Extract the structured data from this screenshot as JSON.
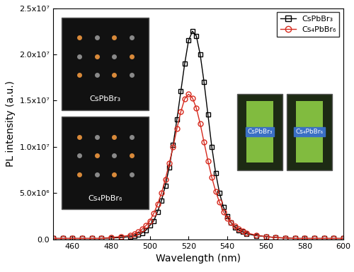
{
  "chart_data": {
    "type": "line",
    "x_label": "Wavelength (nm)",
    "y_label": "PL intensity (a.u.)",
    "x": [
      450,
      455,
      460,
      465,
      470,
      475,
      480,
      485,
      490,
      492,
      494,
      496,
      498,
      500,
      502,
      504,
      506,
      508,
      510,
      512,
      514,
      516,
      518,
      520,
      522,
      524,
      526,
      528,
      530,
      532,
      534,
      536,
      538,
      540,
      542,
      544,
      546,
      548,
      550,
      555,
      560,
      565,
      570,
      575,
      580,
      585,
      590,
      595,
      600
    ],
    "series": [
      {
        "name": "CsPbBr₃",
        "color": "#000000",
        "marker": "square",
        "values": [
          100000.0,
          100000.0,
          100000.0,
          100000.0,
          100000.0,
          100000.0,
          150000.0,
          200000.0,
          300000.0,
          400000.0,
          500000.0,
          700000.0,
          1000000.0,
          1500000.0,
          2000000.0,
          3000000.0,
          4200000.0,
          5800000.0,
          7800000.0,
          10200000.0,
          13000000.0,
          16000000.0,
          19000000.0,
          21500000.0,
          22500000.0,
          22000000.0,
          20000000.0,
          17000000.0,
          13500000.0,
          10000000.0,
          7200000.0,
          5000000.0,
          3500000.0,
          2500000.0,
          1800000.0,
          1300000.0,
          1000000.0,
          800000.0,
          600000.0,
          400000.0,
          300000.0,
          200000.0,
          150000.0,
          100000.0,
          100000.0,
          100000.0,
          100000.0,
          100000.0,
          100000.0
        ]
      },
      {
        "name": "Cs₄PbBr₆",
        "color": "#d62a1e",
        "marker": "circle",
        "values": [
          100000.0,
          100000.0,
          100000.0,
          100000.0,
          100000.0,
          100000.0,
          200000.0,
          300000.0,
          450000.0,
          600000.0,
          800000.0,
          1100000.0,
          1500000.0,
          2000000.0,
          2800000.0,
          3800000.0,
          5000000.0,
          6500000.0,
          8200000.0,
          10000000.0,
          12000000.0,
          13800000.0,
          15200000.0,
          15700000.0,
          15300000.0,
          14200000.0,
          12500000.0,
          10500000.0,
          8500000.0,
          6700000.0,
          5200000.0,
          4000000.0,
          3000000.0,
          2300000.0,
          1800000.0,
          1400000.0,
          1100000.0,
          900000.0,
          700000.0,
          450000.0,
          300000.0,
          200000.0,
          150000.0,
          100000.0,
          100000.0,
          100000.0,
          100000.0,
          100000.0,
          100000.0
        ]
      }
    ],
    "xlim": [
      450,
      600
    ],
    "xticks": [
      460,
      480,
      500,
      520,
      540,
      560,
      580,
      600
    ],
    "ylim": [
      0,
      25000000
    ],
    "yticks": [
      {
        "value": 0,
        "label": "0.0"
      },
      {
        "value": 5000000,
        "label": "5.0x10⁶"
      },
      {
        "value": 10000000,
        "label": "1.0x10⁷"
      },
      {
        "value": 15000000,
        "label": "1.5x10⁷"
      },
      {
        "value": 20000000,
        "label": "2.0x10⁷"
      },
      {
        "value": 25000000,
        "label": "2.5x10⁷"
      }
    ],
    "legend": "upper right",
    "insets": {
      "structures": [
        "CsPbBr₃",
        "Cs₄PbBr₆"
      ],
      "photos": [
        "CsPbBr₃",
        "Cs₄PbBr₆"
      ]
    }
  }
}
